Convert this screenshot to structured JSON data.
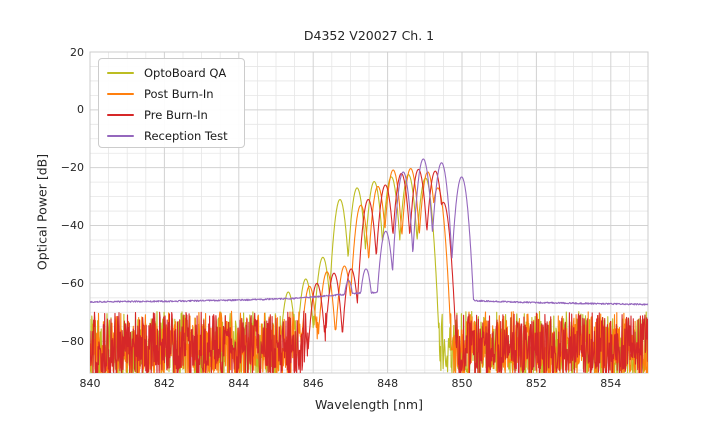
{
  "chart_data": {
    "type": "line",
    "title": "D4352 V20027 Ch. 1",
    "xlabel": "Wavelength [nm]",
    "ylabel": "Optical Power [dB]",
    "xlim": [
      840,
      855
    ],
    "ylim": [
      -91,
      20
    ],
    "xticks": [
      840,
      842,
      844,
      846,
      848,
      850,
      852,
      854
    ],
    "yticks": [
      20,
      0,
      -20,
      -40,
      -60,
      -80
    ],
    "x_minor_step_nm": 0.5,
    "y_minor_step_db": 5,
    "grid": true,
    "legend_position": "upper-left",
    "sample_step_nm": 0.012,
    "mode_shape": {
      "unit_nm": 0.1,
      "falloff_db": 4.2
    },
    "colors": {
      "grid_major": "#d2d2d2",
      "grid_minor": "#e6e6e6",
      "plot_border": "#cccccc",
      "text": "#262626"
    },
    "series": [
      {
        "name": "OptoBoard QA",
        "color": "#bcbd22",
        "noise_floor": {
          "max": -69.5,
          "min": -92.5
        },
        "modes": [
          [
            845.33,
            -63
          ],
          [
            845.8,
            -58.5
          ],
          [
            846.26,
            -51
          ],
          [
            846.72,
            -31
          ],
          [
            847.18,
            -27
          ],
          [
            847.64,
            -24.8
          ],
          [
            848.1,
            -23.2
          ],
          [
            848.56,
            -22.4
          ],
          [
            849.02,
            -23.6
          ]
        ]
      },
      {
        "name": "Post Burn-In",
        "color": "#ff7f0e",
        "noise_floor": {
          "max": -69.5,
          "min": -92.5
        },
        "modes": [
          [
            845.9,
            -61
          ],
          [
            846.37,
            -56
          ],
          [
            846.84,
            -54
          ],
          [
            847.28,
            -33
          ],
          [
            847.74,
            -26.5
          ],
          [
            848.15,
            -20.8
          ],
          [
            848.62,
            -20.3
          ],
          [
            849.08,
            -21.5
          ],
          [
            849.35,
            -27
          ]
        ]
      },
      {
        "name": "Pre Burn-In",
        "color": "#d62728",
        "noise_floor": {
          "max": -69.5,
          "min": -92.5
        },
        "modes": [
          [
            846.1,
            -60
          ],
          [
            846.56,
            -56.5
          ],
          [
            847.02,
            -55
          ],
          [
            847.48,
            -31
          ],
          [
            847.94,
            -26
          ],
          [
            848.37,
            -22
          ],
          [
            848.83,
            -20.6
          ],
          [
            849.28,
            -21.2
          ],
          [
            849.5,
            -32
          ]
        ]
      },
      {
        "name": "Reception Test",
        "color": "#9467bd",
        "baseline": [
          [
            840,
            -66.4
          ],
          [
            842,
            -66.2
          ],
          [
            844,
            -65.8
          ],
          [
            845.5,
            -65.2
          ],
          [
            846.5,
            -64.2
          ],
          [
            847.3,
            -63.3
          ],
          [
            848.5,
            -63.0
          ],
          [
            850.05,
            -64.5
          ],
          [
            850.35,
            -66.0
          ],
          [
            851.5,
            -66.5
          ],
          [
            853.0,
            -66.9
          ],
          [
            855.0,
            -67.3
          ]
        ],
        "baseline_jitter_db": 0.25,
        "modes": [
          [
            846.95,
            -59
          ],
          [
            847.42,
            -55
          ],
          [
            847.95,
            -42
          ],
          [
            848.42,
            -21.5
          ],
          [
            848.96,
            -17
          ],
          [
            849.45,
            -18.3
          ],
          [
            849.99,
            -23.2
          ]
        ]
      }
    ]
  }
}
